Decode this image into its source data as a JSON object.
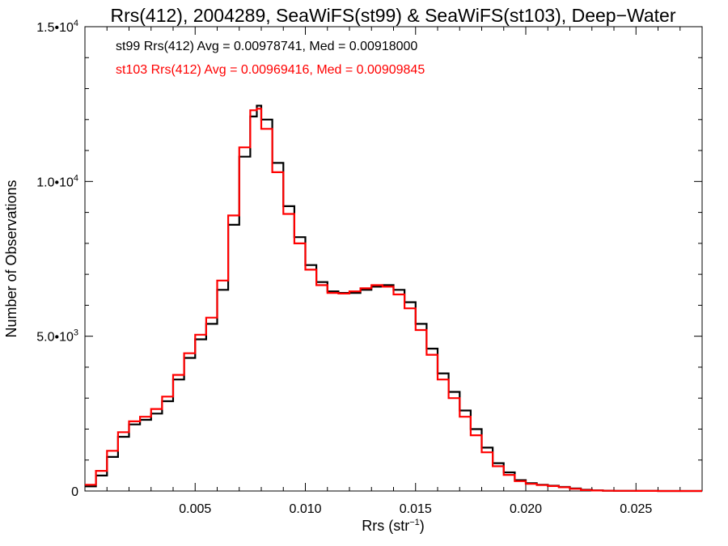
{
  "chart_data": {
    "type": "line",
    "step": true,
    "title": "Rrs(412), 2004289, SeaWiFS(st99) & SeaWiFS(st103), Deep−Water",
    "xlabel": "Rrs (str",
    "xlabel_sup": "−1",
    "xlabel_end": ")",
    "ylabel": "Number of Observations",
    "xlim": [
      0.0,
      0.028
    ],
    "ylim": [
      0,
      15000
    ],
    "grid": false,
    "x_ticks": [
      {
        "value": 0.005,
        "label": "0.005"
      },
      {
        "value": 0.01,
        "label": "0.010"
      },
      {
        "value": 0.015,
        "label": "0.015"
      },
      {
        "value": 0.02,
        "label": "0.020"
      },
      {
        "value": 0.025,
        "label": "0.025"
      }
    ],
    "y_ticks": [
      {
        "value": 0,
        "label": "0",
        "sup": ""
      },
      {
        "value": 5000,
        "label": "5.0•10",
        "sup": "3"
      },
      {
        "value": 10000,
        "label": "1.0•10",
        "sup": "4"
      },
      {
        "value": 15000,
        "label": "1.5•10",
        "sup": "4"
      }
    ],
    "annotations": [
      {
        "text": "st99 Rrs(412) Avg = 0.00978741, Med = 0.00918000",
        "color": "#000000"
      },
      {
        "text": "st103 Rrs(412) Avg = 0.00969416, Med = 0.00909845",
        "color": "#ff0000"
      }
    ],
    "series": [
      {
        "color": "#000000",
        "x": [
          0.0,
          0.0005,
          0.001,
          0.0015,
          0.002,
          0.0025,
          0.003,
          0.0035,
          0.004,
          0.0045,
          0.005,
          0.0055,
          0.006,
          0.0065,
          0.007,
          0.0075,
          0.0078,
          0.008,
          0.0085,
          0.009,
          0.0095,
          0.01,
          0.0105,
          0.011,
          0.0115,
          0.012,
          0.0125,
          0.013,
          0.0135,
          0.014,
          0.0145,
          0.015,
          0.0155,
          0.016,
          0.0165,
          0.017,
          0.0175,
          0.018,
          0.0185,
          0.019,
          0.0195,
          0.02,
          0.0205,
          0.021,
          0.0215,
          0.022,
          0.0225,
          0.023,
          0.0235,
          0.024,
          0.025,
          0.026,
          0.028
        ],
        "values": [
          150,
          500,
          1100,
          1750,
          2150,
          2300,
          2500,
          2900,
          3600,
          4300,
          4900,
          5400,
          6500,
          8600,
          10800,
          12100,
          12450,
          12000,
          10600,
          9200,
          8200,
          7300,
          6750,
          6450,
          6400,
          6400,
          6500,
          6600,
          6650,
          6500,
          6100,
          5400,
          4600,
          3800,
          3200,
          2600,
          2000,
          1400,
          900,
          600,
          350,
          250,
          200,
          170,
          130,
          80,
          40,
          20,
          10,
          5,
          2,
          0,
          0
        ]
      },
      {
        "color": "#ff0000",
        "x": [
          0.0,
          0.0005,
          0.001,
          0.0015,
          0.002,
          0.0025,
          0.003,
          0.0035,
          0.004,
          0.0045,
          0.005,
          0.0055,
          0.006,
          0.0065,
          0.007,
          0.0075,
          0.0078,
          0.008,
          0.0085,
          0.009,
          0.0095,
          0.01,
          0.0105,
          0.011,
          0.0115,
          0.012,
          0.0125,
          0.013,
          0.0135,
          0.014,
          0.0145,
          0.015,
          0.0155,
          0.016,
          0.0165,
          0.017,
          0.0175,
          0.018,
          0.0185,
          0.019,
          0.0195,
          0.02,
          0.0205,
          0.021,
          0.0215,
          0.022,
          0.0225,
          0.023,
          0.0235,
          0.024,
          0.025,
          0.026,
          0.028
        ],
        "values": [
          200,
          650,
          1300,
          1900,
          2250,
          2400,
          2650,
          3050,
          3750,
          4450,
          5050,
          5600,
          6800,
          8900,
          11100,
          12300,
          12350,
          11700,
          10300,
          8950,
          8000,
          7150,
          6650,
          6400,
          6380,
          6450,
          6550,
          6650,
          6600,
          6350,
          5900,
          5200,
          4400,
          3600,
          3000,
          2400,
          1800,
          1250,
          800,
          520,
          320,
          230,
          190,
          160,
          120,
          70,
          30,
          15,
          8,
          4,
          2,
          0,
          0
        ]
      }
    ]
  }
}
